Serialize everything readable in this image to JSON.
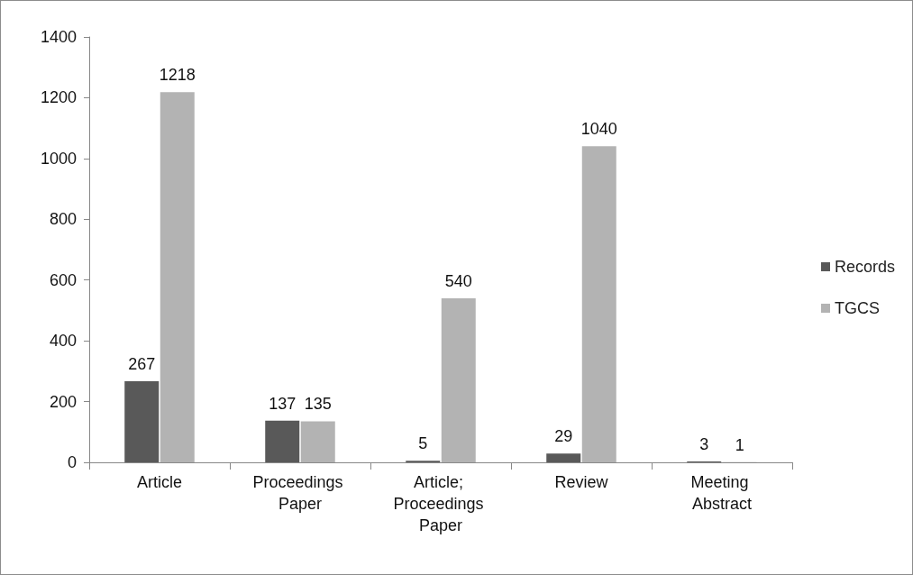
{
  "chart_data": {
    "type": "bar",
    "categories": [
      "Article",
      "Proceedings Paper",
      "Article; Proceedings Paper",
      "Review",
      "Meeting Abstract"
    ],
    "series": [
      {
        "name": "Records",
        "color": "#595959",
        "values": [
          267,
          137,
          5,
          29,
          3
        ]
      },
      {
        "name": "TGCS",
        "color": "#b3b3b3",
        "values": [
          1218,
          135,
          540,
          1040,
          1
        ]
      }
    ],
    "ylim": [
      0,
      1400
    ],
    "yticks": [
      0,
      200,
      400,
      600,
      800,
      1000,
      1200,
      1400
    ],
    "grid": false,
    "legend": "right",
    "data_labels": true
  }
}
